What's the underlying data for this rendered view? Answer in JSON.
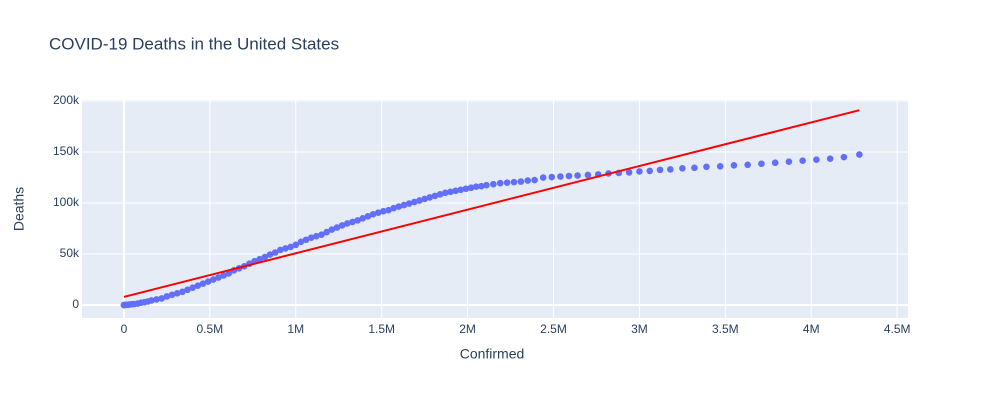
{
  "chart_data": {
    "type": "scatter",
    "title": "COVID-19 Deaths in the United States",
    "x_label": "Confirmed",
    "y_label": "Deaths",
    "xlim": [
      -244000,
      4563000
    ],
    "ylim": [
      -12700,
      201000
    ],
    "xticks": [
      0,
      {
        "value": 500000,
        "label": "0.5M"
      },
      {
        "value": 1000000,
        "label": "1M"
      },
      {
        "value": 1500000,
        "label": "1.5M"
      },
      {
        "value": 2000000,
        "label": "2M"
      },
      {
        "value": 2500000,
        "label": "2.5M"
      },
      {
        "value": 3000000,
        "label": "3M"
      },
      {
        "value": 3500000,
        "label": "3.5M"
      },
      {
        "value": 4000000,
        "label": "4M"
      },
      {
        "value": 4500000,
        "label": "4.5M"
      }
    ],
    "yticks": [
      0,
      {
        "value": 50000,
        "label": "50k"
      },
      {
        "value": 100000,
        "label": "100k"
      },
      {
        "value": 150000,
        "label": "150k"
      },
      {
        "value": 200000,
        "label": "200k"
      }
    ],
    "grid": true,
    "series": [
      {
        "color": "#636efa",
        "mode": "markers",
        "x": [
          0,
          1000,
          2000,
          5000,
          10000,
          20000,
          30000,
          45000,
          60000,
          80000,
          100000,
          120000,
          140000,
          160000,
          190000,
          220000,
          250000,
          280000,
          310000,
          340000,
          370000,
          400000,
          430000,
          460000,
          490000,
          520000,
          550000,
          580000,
          610000,
          640000,
          670000,
          700000,
          730000,
          760000,
          790000,
          820000,
          850000,
          880000,
          910000,
          940000,
          970000,
          1000000,
          1030000,
          1060000,
          1090000,
          1120000,
          1150000,
          1180000,
          1210000,
          1240000,
          1270000,
          1300000,
          1330000,
          1360000,
          1390000,
          1420000,
          1450000,
          1480000,
          1510000,
          1540000,
          1570000,
          1600000,
          1630000,
          1660000,
          1690000,
          1720000,
          1750000,
          1780000,
          1810000,
          1840000,
          1870000,
          1900000,
          1930000,
          1960000,
          1990000,
          2020000,
          2050000,
          2080000,
          2110000,
          2150000,
          2190000,
          2230000,
          2270000,
          2310000,
          2350000,
          2390000,
          2440000,
          2490000,
          2540000,
          2590000,
          2640000,
          2700000,
          2760000,
          2820000,
          2880000,
          2940000,
          3000000,
          3060000,
          3120000,
          3180000,
          3250000,
          3320000,
          3390000,
          3470000,
          3550000,
          3630000,
          3710000,
          3790000,
          3870000,
          3950000,
          4030000,
          4110000,
          4190000,
          4280000
        ],
        "values": [
          0,
          0,
          50,
          100,
          200,
          300,
          500,
          800,
          1000,
          1500,
          2300,
          2800,
          3500,
          4500,
          5500,
          6500,
          8500,
          10000,
          11500,
          13000,
          15000,
          17000,
          19000,
          21000,
          23000,
          25000,
          27000,
          29000,
          31000,
          34000,
          36000,
          38000,
          40500,
          43000,
          45000,
          47000,
          49500,
          51500,
          54000,
          55500,
          57000,
          59000,
          62000,
          64000,
          66000,
          67500,
          69000,
          71500,
          74000,
          76000,
          78000,
          80000,
          81500,
          83000,
          85000,
          87000,
          89000,
          90500,
          92000,
          93000,
          95000,
          96500,
          98000,
          99500,
          101000,
          102500,
          104000,
          105500,
          107000,
          108500,
          110000,
          111000,
          112000,
          113000,
          114000,
          115000,
          116000,
          116500,
          117500,
          118500,
          119500,
          120000,
          120500,
          121000,
          122000,
          122500,
          125000,
          125500,
          126000,
          126500,
          127000,
          127500,
          128000,
          129000,
          129500,
          130000,
          131000,
          131500,
          132500,
          133000,
          134000,
          134500,
          135500,
          136000,
          137000,
          137500,
          138500,
          139500,
          140500,
          141500,
          142500,
          143500,
          145000,
          147500
        ]
      },
      {
        "color": "red",
        "mode": "lines",
        "x": [
          0,
          4280000
        ],
        "values": [
          8000,
          191000
        ]
      }
    ]
  }
}
